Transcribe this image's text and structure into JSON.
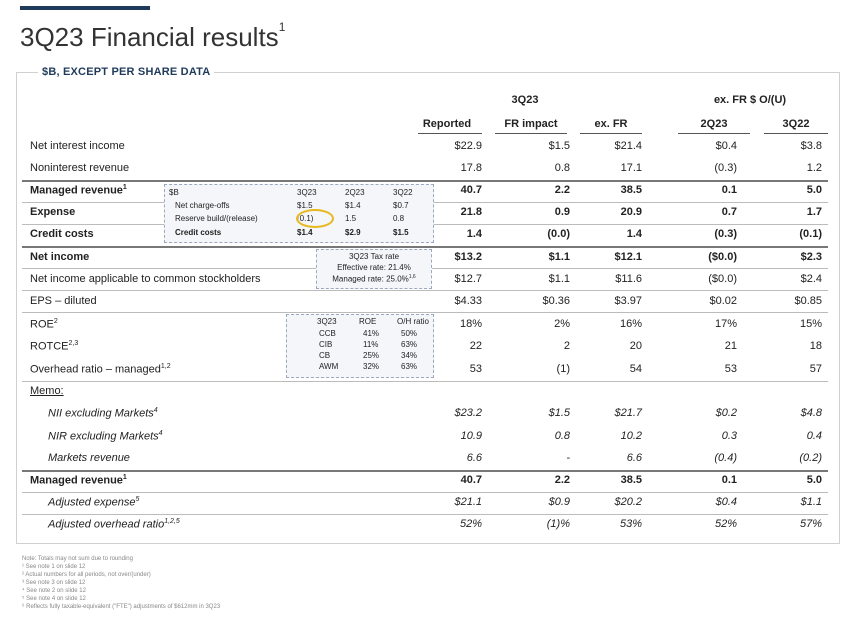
{
  "title": "3Q23 Financial results",
  "title_sup": "1",
  "subtitle": "$B, EXCEPT PER SHARE DATA",
  "group_headers": {
    "q": "3Q23",
    "exfr": "ex. FR $ O/(U)"
  },
  "columns": [
    "Reported",
    "FR impact",
    "ex. FR",
    "2Q23",
    "3Q22"
  ],
  "rows": [
    {
      "label": "Net interest income",
      "sup": "",
      "style": "normal",
      "values": [
        "$22.9",
        "$1.5",
        "$21.4",
        "$0.4",
        "$3.8"
      ]
    },
    {
      "label": "Noninterest revenue",
      "sup": "",
      "style": "normal",
      "values": [
        "17.8",
        "0.8",
        "17.1",
        "(0.3)",
        "1.2"
      ]
    },
    {
      "label": "Managed revenue",
      "sup": "1",
      "style": "bold",
      "values": [
        "40.7",
        "2.2",
        "38.5",
        "0.1",
        "5.0"
      ]
    },
    {
      "label": "Expense",
      "sup": "",
      "style": "bold",
      "values": [
        "21.8",
        "0.9",
        "20.9",
        "0.7",
        "1.7"
      ]
    },
    {
      "label": "Credit costs",
      "sup": "",
      "style": "bold",
      "values": [
        "1.4",
        "(0.0)",
        "1.4",
        "(0.3)",
        "(0.1)"
      ]
    },
    {
      "label": "Net income",
      "sup": "",
      "style": "bold",
      "values": [
        "$13.2",
        "$1.1",
        "$12.1",
        "($0.0)",
        "$2.3"
      ]
    },
    {
      "label": "Net income applicable to common stockholders",
      "sup": "",
      "style": "normal",
      "values": [
        "$12.7",
        "$1.1",
        "$11.6",
        "($0.0)",
        "$2.4"
      ]
    },
    {
      "label": "EPS – diluted",
      "sup": "",
      "style": "normal",
      "values": [
        "$4.33",
        "$0.36",
        "$3.97",
        "$0.02",
        "$0.85"
      ]
    },
    {
      "label": "ROE",
      "sup": "2",
      "style": "normal",
      "values": [
        "18%",
        "2%",
        "16%",
        "17%",
        "15%"
      ]
    },
    {
      "label": "ROTCE",
      "sup": "2,3",
      "style": "normal",
      "values": [
        "22",
        "2",
        "20",
        "21",
        "18"
      ]
    },
    {
      "label": "Overhead ratio – managed",
      "sup": "1,2",
      "style": "normal",
      "values": [
        "53",
        "(1)",
        "54",
        "53",
        "57"
      ]
    },
    {
      "label": "Memo:",
      "sup": "",
      "style": "memo",
      "values": [
        "",
        "",
        "",
        "",
        ""
      ]
    },
    {
      "label": "NII excluding Markets",
      "sup": "4",
      "style": "italic",
      "values": [
        "$23.2",
        "$1.5",
        "$21.7",
        "$0.2",
        "$4.8"
      ]
    },
    {
      "label": "NIR excluding Markets",
      "sup": "4",
      "style": "italic",
      "values": [
        "10.9",
        "0.8",
        "10.2",
        "0.3",
        "0.4"
      ]
    },
    {
      "label": "Markets revenue",
      "sup": "",
      "style": "italic",
      "values": [
        "6.6",
        "-",
        "6.6",
        "(0.4)",
        "(0.2)"
      ]
    },
    {
      "label": "Managed revenue",
      "sup": "1",
      "style": "bold",
      "values": [
        "40.7",
        "2.2",
        "38.5",
        "0.1",
        "5.0"
      ]
    },
    {
      "label": "Adjusted expense",
      "sup": "5",
      "style": "italic",
      "values": [
        "$21.1",
        "$0.9",
        "$20.2",
        "$0.4",
        "$1.1"
      ]
    },
    {
      "label": "Adjusted overhead ratio",
      "sup": "1,2,5",
      "style": "italic",
      "values": [
        "52%",
        "(1)%",
        "53%",
        "52%",
        "57%"
      ]
    }
  ],
  "credit_inset": {
    "header": [
      "$B",
      "3Q23",
      "2Q23",
      "3Q22"
    ],
    "rows": [
      [
        "Net charge-offs",
        "$1.5",
        "$1.4",
        "$0.7"
      ],
      [
        "Reserve build/(release)",
        "(0.1)",
        "1.5",
        "0.8"
      ],
      [
        "Credit costs",
        "$1.4",
        "$2.9",
        "$1.5"
      ]
    ]
  },
  "tax_inset": {
    "title": "3Q23 Tax rate",
    "effective": "Effective rate: 21.4%",
    "managed": "Managed rate: 25.0%",
    "managed_sup": "1,6"
  },
  "lob_inset": {
    "header": [
      "3Q23",
      "ROE",
      "O/H ratio"
    ],
    "rows": [
      [
        "CCB",
        "41%",
        "50%"
      ],
      [
        "CIB",
        "11%",
        "63%"
      ],
      [
        "CB",
        "25%",
        "34%"
      ],
      [
        "AWM",
        "32%",
        "63%"
      ]
    ]
  },
  "notes": [
    "Note: Totals may not sum due to rounding",
    "¹ See note 1 on slide 12",
    "² Actual numbers for all periods, not over/(under)",
    "³ See note 3 on slide 12",
    "⁴ See note 2 on slide 12",
    "⁵ See note 4 on slide 12",
    "⁶ Reflects fully taxable-equivalent (\"FTE\") adjustments of $612mm in 3Q23"
  ],
  "colors": {
    "accent": "#1f3a5a",
    "highlight_circle": "#e8b81f"
  }
}
